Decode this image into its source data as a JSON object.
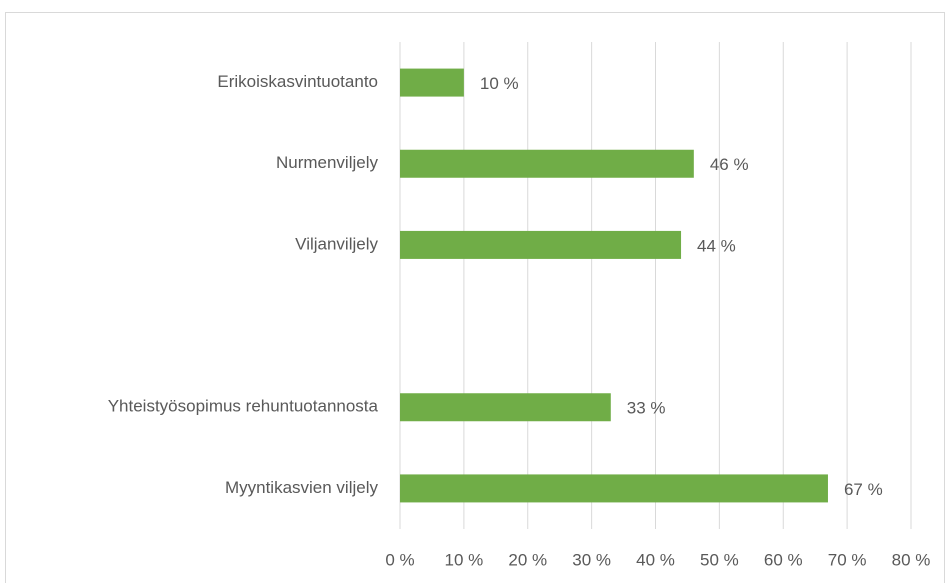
{
  "chart_data": {
    "type": "bar",
    "orientation": "horizontal",
    "categories": [
      "Erikoiskasvintuotanto",
      "Nurmenviljely",
      "Viljanviljely",
      null,
      "Yhteistyösopimus rehuntuotannosta",
      "Myyntikasvien viljely"
    ],
    "values": [
      10,
      46,
      44,
      null,
      33,
      67
    ],
    "value_labels": [
      "10 %",
      "46 %",
      "44 %",
      null,
      "33 %",
      "67 %"
    ],
    "color": "#70ad47",
    "xlim": [
      0,
      80
    ],
    "xticks": [
      {
        "value": 0,
        "label": "0 %"
      },
      {
        "value": 10,
        "label": "10 %"
      },
      {
        "value": 20,
        "label": "20 %"
      },
      {
        "value": 30,
        "label": "30 %"
      },
      {
        "value": 40,
        "label": "40 %"
      },
      {
        "value": 50,
        "label": "50 %"
      },
      {
        "value": 60,
        "label": "60 %"
      },
      {
        "value": 70,
        "label": "70 %"
      },
      {
        "value": 80,
        "label": "80 %"
      }
    ],
    "grid": true
  }
}
